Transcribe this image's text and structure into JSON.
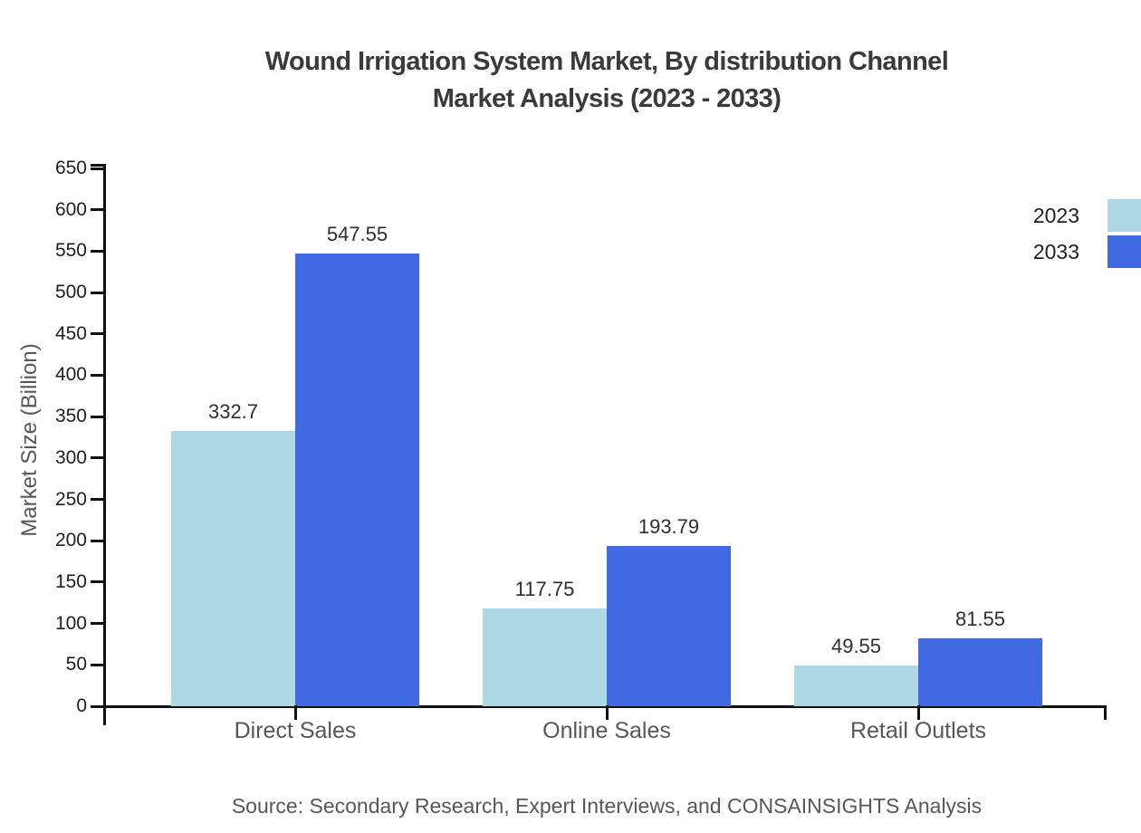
{
  "title": {
    "line1": "Wound Irrigation System Market, By distribution Channel",
    "line2": "Market Analysis (2023 - 2033)"
  },
  "source_note": "Source: Secondary Research, Expert Interviews, and CONSAINSIGHTS Analysis",
  "chart_data": {
    "type": "bar",
    "title": "Wound Irrigation System Market, By distribution Channel Market Analysis (2023 - 2033)",
    "categories": [
      "Direct Sales",
      "Online Sales",
      "Retail Outlets"
    ],
    "series": [
      {
        "name": "2023",
        "color": "#ADD8E6",
        "values": [
          332.7,
          117.75,
          49.55
        ]
      },
      {
        "name": "2033",
        "color": "#4169E1",
        "values": [
          547.55,
          193.79,
          81.55
        ]
      }
    ],
    "xlabel": "",
    "ylabel": "Market Size (Billion)",
    "ylim": [
      0,
      650
    ],
    "yticks": [
      0,
      50,
      100,
      150,
      200,
      250,
      300,
      350,
      400,
      450,
      500,
      550,
      600,
      650
    ],
    "grid": false,
    "legend_position": "right-outside",
    "value_labels": true,
    "axis_color": "#111111"
  }
}
